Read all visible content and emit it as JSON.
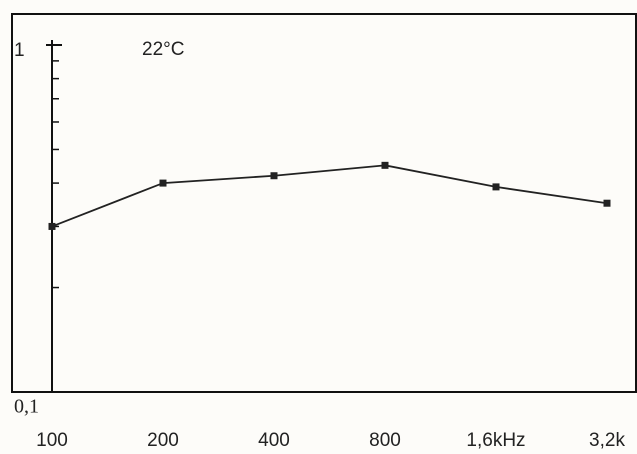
{
  "chart_data": {
    "type": "line",
    "annotation": "22°C",
    "x": [
      100,
      200,
      400,
      800,
      1600,
      3200
    ],
    "series": [
      {
        "color": "#222222",
        "values": [
          0.3,
          0.4,
          0.42,
          0.45,
          0.39,
          0.35
        ]
      }
    ],
    "xlim": [
      100,
      3200
    ],
    "xticks": [
      100,
      200,
      400,
      800,
      {
        "value": 1600,
        "label": "1,6kHz"
      },
      {
        "value": 3200,
        "label": "3,2k"
      }
    ],
    "ylim": [
      0.1,
      1
    ],
    "yticks": [
      {
        "value": 0.1,
        "label": "0,1"
      },
      1
    ],
    "yminorticks": [
      0.2,
      0.3,
      0.4,
      0.5,
      0.6,
      0.7,
      0.8,
      0.9
    ],
    "xlog": true,
    "ylog": true
  }
}
